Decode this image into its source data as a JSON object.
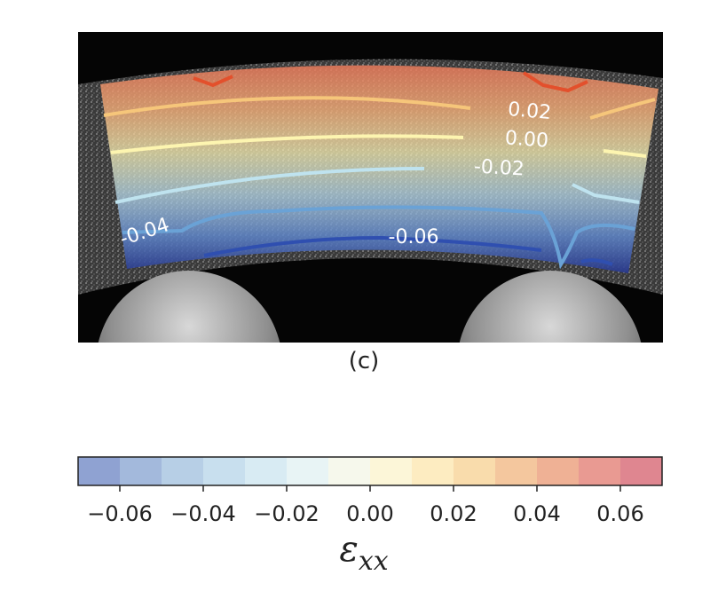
{
  "panel": {
    "label": "(c)"
  },
  "contours": [
    {
      "level": "0.02",
      "value": 0.02,
      "color": "#f6c67a"
    },
    {
      "level": "0.00",
      "value": 0.0,
      "color": "#fdf5b0"
    },
    {
      "level": "-0.02",
      "value": -0.02,
      "color": "#bfe3ef"
    },
    {
      "level": "-0.04",
      "value": -0.04,
      "color": "#6aa2d6"
    },
    {
      "level": "-0.06",
      "value": -0.06,
      "color": "#2f4fb0"
    }
  ],
  "colorbar": {
    "symbol": "ε",
    "symbol_sub": "xx",
    "range": [
      -0.07,
      0.07
    ],
    "ticks": [
      {
        "value": -0.06,
        "label": "−0.06"
      },
      {
        "value": -0.04,
        "label": "−0.04"
      },
      {
        "value": -0.02,
        "label": "−0.02"
      },
      {
        "value": 0.0,
        "label": "0.00"
      },
      {
        "value": 0.02,
        "label": "0.02"
      },
      {
        "value": 0.04,
        "label": "0.04"
      },
      {
        "value": 0.06,
        "label": "0.06"
      }
    ],
    "band_colors": [
      "#8fa2d2",
      "#a3b9dc",
      "#b7cfe6",
      "#c8dfee",
      "#d8ebf3",
      "#e8f4f5",
      "#f6f8ec",
      "#fcf6d8",
      "#fdecc1",
      "#f9dcac",
      "#f4c79e",
      "#efb195",
      "#e99a92",
      "#df8690"
    ]
  }
}
